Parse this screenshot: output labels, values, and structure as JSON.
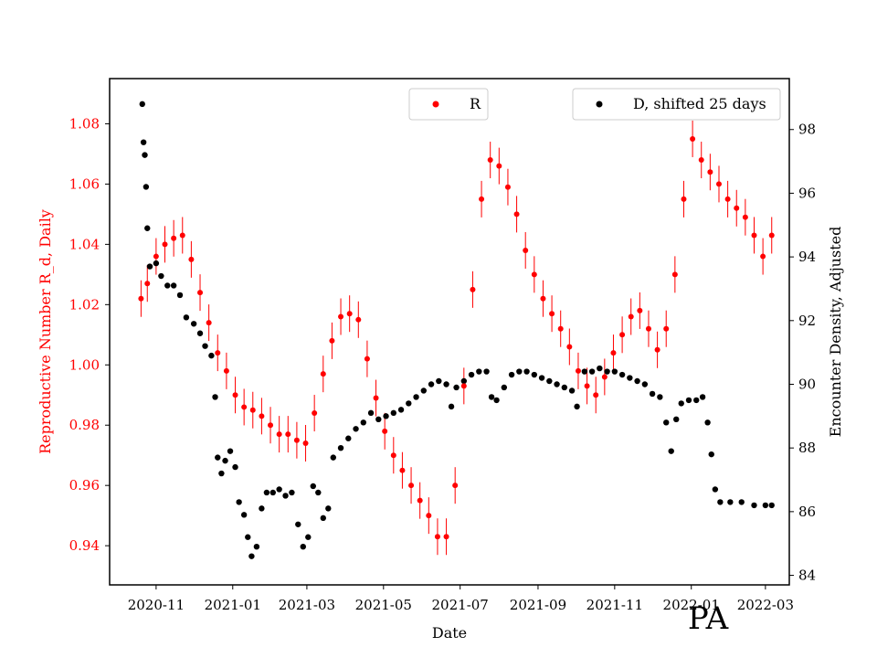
{
  "chart_data": {
    "type": "scatter",
    "xlabel": "Date",
    "ylabel_left": "Reproductive Number R_d, Daily",
    "ylabel_right": "Encounter Density, Adjusted",
    "annotation": "PA",
    "x_range": [
      "2020-09-25",
      "2022-03-20"
    ],
    "y_left_range": [
      0.927,
      1.095
    ],
    "y_right_range": [
      83.7,
      99.6
    ],
    "x_ticks": [
      "2020-11",
      "2021-01",
      "2021-03",
      "2021-05",
      "2021-07",
      "2021-09",
      "2021-11",
      "2022-01",
      "2022-03"
    ],
    "y_left_ticks": [
      "0.94",
      "0.96",
      "0.98",
      "1.00",
      "1.02",
      "1.04",
      "1.06",
      "1.08"
    ],
    "y_right_ticks": [
      "84",
      "86",
      "88",
      "90",
      "92",
      "94",
      "96",
      "98"
    ],
    "colors": {
      "r_series": "#ff0000",
      "d_series": "#000000",
      "left_axis": "#ff0000",
      "right_axis": "#000000"
    },
    "legends": [
      {
        "label": "R",
        "color": "#ff0000",
        "placement": "upper-center"
      },
      {
        "label": "D, shifted 25 days",
        "color": "#000000",
        "placement": "upper-right"
      }
    ],
    "series": [
      {
        "name": "R",
        "axis": "left",
        "marker": "dot-with-errorbars",
        "color": "#ff0000",
        "points": [
          [
            "2020-10-20",
            1.022
          ],
          [
            "2020-10-25",
            1.027
          ],
          [
            "2020-11-01",
            1.036
          ],
          [
            "2020-11-08",
            1.04
          ],
          [
            "2020-11-15",
            1.042
          ],
          [
            "2020-11-22",
            1.043
          ],
          [
            "2020-11-29",
            1.035
          ],
          [
            "2020-12-06",
            1.024
          ],
          [
            "2020-12-13",
            1.014
          ],
          [
            "2020-12-20",
            1.004
          ],
          [
            "2020-12-27",
            0.998
          ],
          [
            "2021-01-03",
            0.99
          ],
          [
            "2021-01-10",
            0.986
          ],
          [
            "2021-01-17",
            0.985
          ],
          [
            "2021-01-24",
            0.983
          ],
          [
            "2021-01-31",
            0.98
          ],
          [
            "2021-02-07",
            0.977
          ],
          [
            "2021-02-14",
            0.977
          ],
          [
            "2021-02-21",
            0.975
          ],
          [
            "2021-02-28",
            0.974
          ],
          [
            "2021-03-07",
            0.984
          ],
          [
            "2021-03-14",
            0.997
          ],
          [
            "2021-03-21",
            1.008
          ],
          [
            "2021-03-28",
            1.016
          ],
          [
            "2021-04-04",
            1.017
          ],
          [
            "2021-04-11",
            1.015
          ],
          [
            "2021-04-18",
            1.002
          ],
          [
            "2021-04-25",
            0.989
          ],
          [
            "2021-05-02",
            0.978
          ],
          [
            "2021-05-09",
            0.97
          ],
          [
            "2021-05-16",
            0.965
          ],
          [
            "2021-05-23",
            0.96
          ],
          [
            "2021-05-30",
            0.955
          ],
          [
            "2021-06-06",
            0.95
          ],
          [
            "2021-06-13",
            0.943
          ],
          [
            "2021-06-20",
            0.943
          ],
          [
            "2021-06-27",
            0.96
          ],
          [
            "2021-07-04",
            0.993
          ],
          [
            "2021-07-11",
            1.025
          ],
          [
            "2021-07-18",
            1.055
          ],
          [
            "2021-07-25",
            1.068
          ],
          [
            "2021-08-01",
            1.066
          ],
          [
            "2021-08-08",
            1.059
          ],
          [
            "2021-08-15",
            1.05
          ],
          [
            "2021-08-22",
            1.038
          ],
          [
            "2021-08-29",
            1.03
          ],
          [
            "2021-09-05",
            1.022
          ],
          [
            "2021-09-12",
            1.017
          ],
          [
            "2021-09-19",
            1.012
          ],
          [
            "2021-09-26",
            1.006
          ],
          [
            "2021-10-03",
            0.998
          ],
          [
            "2021-10-10",
            0.993
          ],
          [
            "2021-10-17",
            0.99
          ],
          [
            "2021-10-24",
            0.996
          ],
          [
            "2021-10-31",
            1.004
          ],
          [
            "2021-11-07",
            1.01
          ],
          [
            "2021-11-14",
            1.016
          ],
          [
            "2021-11-21",
            1.018
          ],
          [
            "2021-11-28",
            1.012
          ],
          [
            "2021-12-05",
            1.005
          ],
          [
            "2021-12-12",
            1.012
          ],
          [
            "2021-12-19",
            1.03
          ],
          [
            "2021-12-26",
            1.055
          ],
          [
            "2022-01-02",
            1.075
          ],
          [
            "2022-01-09",
            1.068
          ],
          [
            "2022-01-16",
            1.064
          ],
          [
            "2022-01-23",
            1.06
          ],
          [
            "2022-01-30",
            1.055
          ],
          [
            "2022-02-06",
            1.052
          ],
          [
            "2022-02-13",
            1.049
          ],
          [
            "2022-02-20",
            1.043
          ],
          [
            "2022-02-27",
            1.036
          ],
          [
            "2022-03-06",
            1.043
          ]
        ]
      },
      {
        "name": "D, shifted 25 days",
        "axis": "right",
        "marker": "dot",
        "color": "#000000",
        "points": [
          [
            "2020-10-21",
            98.8
          ],
          [
            "2020-10-22",
            97.6
          ],
          [
            "2020-10-23",
            97.2
          ],
          [
            "2020-10-24",
            96.2
          ],
          [
            "2020-10-25",
            94.9
          ],
          [
            "2020-10-27",
            93.7
          ],
          [
            "2020-11-01",
            93.8
          ],
          [
            "2020-11-05",
            93.4
          ],
          [
            "2020-11-10",
            93.1
          ],
          [
            "2020-11-15",
            93.1
          ],
          [
            "2020-11-20",
            92.8
          ],
          [
            "2020-11-25",
            92.1
          ],
          [
            "2020-12-01",
            91.9
          ],
          [
            "2020-12-06",
            91.6
          ],
          [
            "2020-12-10",
            91.2
          ],
          [
            "2020-12-15",
            90.9
          ],
          [
            "2020-12-18",
            89.6
          ],
          [
            "2020-12-20",
            87.7
          ],
          [
            "2020-12-23",
            87.2
          ],
          [
            "2020-12-26",
            87.6
          ],
          [
            "2020-12-30",
            87.9
          ],
          [
            "2021-01-03",
            87.4
          ],
          [
            "2021-01-06",
            86.3
          ],
          [
            "2021-01-10",
            85.9
          ],
          [
            "2021-01-13",
            85.2
          ],
          [
            "2021-01-16",
            84.6
          ],
          [
            "2021-01-20",
            84.9
          ],
          [
            "2021-01-24",
            86.1
          ],
          [
            "2021-01-28",
            86.6
          ],
          [
            "2021-02-02",
            86.6
          ],
          [
            "2021-02-07",
            86.7
          ],
          [
            "2021-02-12",
            86.5
          ],
          [
            "2021-02-17",
            86.6
          ],
          [
            "2021-02-22",
            85.6
          ],
          [
            "2021-02-26",
            84.9
          ],
          [
            "2021-03-02",
            85.2
          ],
          [
            "2021-03-06",
            86.8
          ],
          [
            "2021-03-10",
            86.6
          ],
          [
            "2021-03-14",
            85.8
          ],
          [
            "2021-03-18",
            86.1
          ],
          [
            "2021-03-22",
            87.7
          ],
          [
            "2021-03-28",
            88.0
          ],
          [
            "2021-04-03",
            88.3
          ],
          [
            "2021-04-09",
            88.6
          ],
          [
            "2021-04-15",
            88.8
          ],
          [
            "2021-04-21",
            89.1
          ],
          [
            "2021-04-27",
            88.9
          ],
          [
            "2021-05-03",
            89.0
          ],
          [
            "2021-05-09",
            89.1
          ],
          [
            "2021-05-15",
            89.2
          ],
          [
            "2021-05-21",
            89.4
          ],
          [
            "2021-05-27",
            89.6
          ],
          [
            "2021-06-02",
            89.8
          ],
          [
            "2021-06-08",
            90.0
          ],
          [
            "2021-06-14",
            90.1
          ],
          [
            "2021-06-20",
            90.0
          ],
          [
            "2021-06-24",
            89.3
          ],
          [
            "2021-06-28",
            89.9
          ],
          [
            "2021-07-04",
            90.1
          ],
          [
            "2021-07-10",
            90.3
          ],
          [
            "2021-07-16",
            90.4
          ],
          [
            "2021-07-22",
            90.4
          ],
          [
            "2021-07-26",
            89.6
          ],
          [
            "2021-07-30",
            89.5
          ],
          [
            "2021-08-05",
            89.9
          ],
          [
            "2021-08-11",
            90.3
          ],
          [
            "2021-08-17",
            90.4
          ],
          [
            "2021-08-23",
            90.4
          ],
          [
            "2021-08-29",
            90.3
          ],
          [
            "2021-09-04",
            90.2
          ],
          [
            "2021-09-10",
            90.1
          ],
          [
            "2021-09-16",
            90.0
          ],
          [
            "2021-09-22",
            89.9
          ],
          [
            "2021-09-28",
            89.8
          ],
          [
            "2021-10-02",
            89.3
          ],
          [
            "2021-10-08",
            90.4
          ],
          [
            "2021-10-14",
            90.4
          ],
          [
            "2021-10-20",
            90.5
          ],
          [
            "2021-10-26",
            90.4
          ],
          [
            "2021-11-01",
            90.4
          ],
          [
            "2021-11-07",
            90.3
          ],
          [
            "2021-11-13",
            90.2
          ],
          [
            "2021-11-19",
            90.1
          ],
          [
            "2021-11-25",
            90.0
          ],
          [
            "2021-12-01",
            89.7
          ],
          [
            "2021-12-07",
            89.6
          ],
          [
            "2021-12-12",
            88.8
          ],
          [
            "2021-12-16",
            87.9
          ],
          [
            "2021-12-20",
            88.9
          ],
          [
            "2021-12-24",
            89.4
          ],
          [
            "2021-12-30",
            89.5
          ],
          [
            "2022-01-05",
            89.5
          ],
          [
            "2022-01-10",
            89.6
          ],
          [
            "2022-01-14",
            88.8
          ],
          [
            "2022-01-17",
            87.8
          ],
          [
            "2022-01-20",
            86.7
          ],
          [
            "2022-01-24",
            86.3
          ],
          [
            "2022-02-01",
            86.3
          ],
          [
            "2022-02-10",
            86.3
          ],
          [
            "2022-02-20",
            86.2
          ],
          [
            "2022-03-01",
            86.2
          ],
          [
            "2022-03-06",
            86.2
          ]
        ]
      }
    ]
  }
}
